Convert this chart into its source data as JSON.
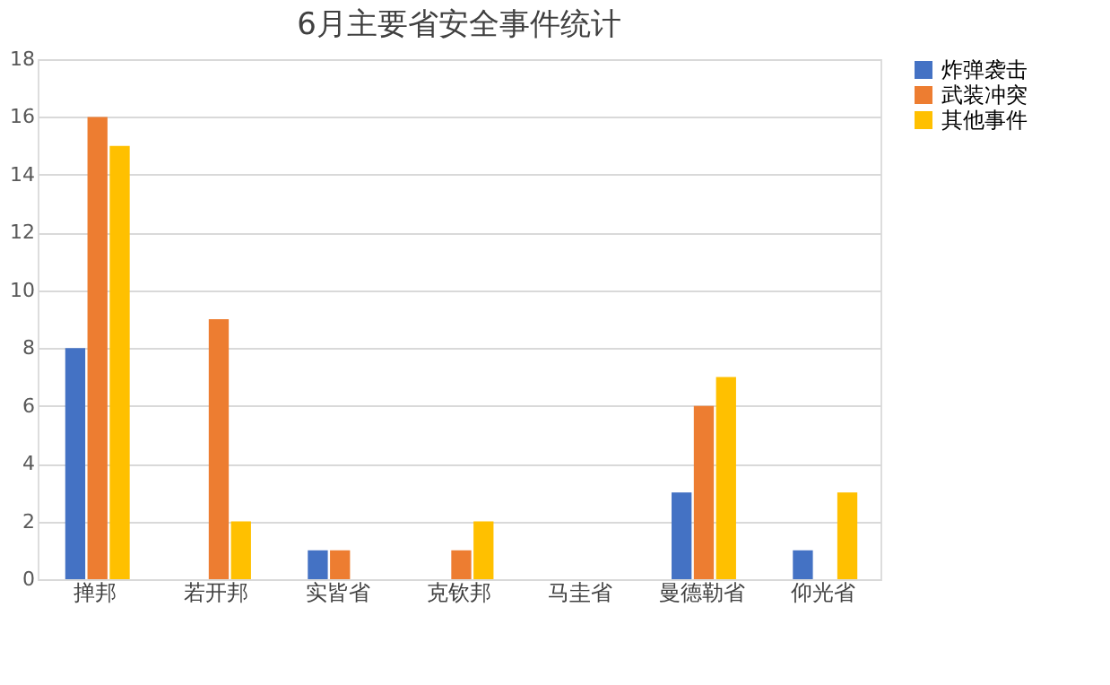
{
  "chart_data": {
    "type": "bar",
    "title": "6月主要省安全事件统计",
    "categories": [
      "掸邦",
      "若开邦",
      "实皆省",
      "克钦邦",
      "马圭省",
      "曼德勒省",
      "仰光省"
    ],
    "series": [
      {
        "name": "炸弹袭击",
        "color": "#4472c4",
        "values": [
          8,
          0,
          1,
          0,
          0,
          3,
          1
        ]
      },
      {
        "name": "武装冲突",
        "color": "#ed7d31",
        "values": [
          16,
          9,
          1,
          1,
          0,
          6,
          0
        ]
      },
      {
        "name": "其他事件",
        "color": "#ffc000",
        "values": [
          15,
          2,
          0,
          2,
          0,
          7,
          3
        ]
      }
    ],
    "ylim": [
      0,
      18
    ],
    "yticks": [
      0,
      2,
      4,
      6,
      8,
      10,
      12,
      14,
      16,
      18
    ],
    "grid": "y",
    "legend": "right"
  }
}
